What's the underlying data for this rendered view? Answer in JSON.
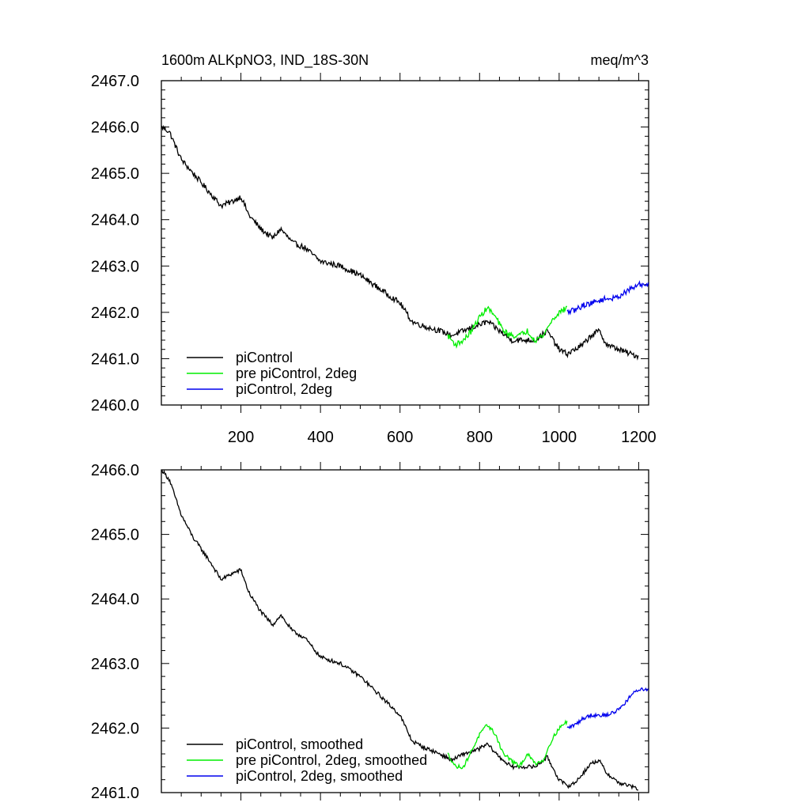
{
  "figure": {
    "title_left": "1600m ALKpNO3, IND_18S-30N",
    "title_right": "meq/m^3"
  },
  "colors": {
    "piControl": "#000000",
    "pre_piControl_2deg": "#00ee00",
    "piControl_2deg": "#0000ee"
  },
  "chart_data": [
    {
      "type": "line",
      "title": "1600m ALKpNO3, IND_18S-30N",
      "units": "meq/m^3",
      "xlim": [
        0,
        1225
      ],
      "ylim": [
        2460.0,
        2467.0
      ],
      "xticks": [
        200,
        400,
        600,
        800,
        1000,
        1200
      ],
      "xtick_labels": [
        "200",
        "400",
        "600",
        "800",
        "1000",
        "1200"
      ],
      "yticks": [
        2460.0,
        2461.0,
        2462.0,
        2463.0,
        2464.0,
        2465.0,
        2466.0,
        2467.0
      ],
      "ytick_labels": [
        "2460.0",
        "2461.0",
        "2462.0",
        "2463.0",
        "2464.0",
        "2465.0",
        "2466.0",
        "2467.0"
      ],
      "legend": {
        "position": "bottom-left",
        "entries": [
          "piControl",
          "pre piControl, 2deg",
          "piControl, 2deg"
        ]
      },
      "noise": 0.06,
      "series": [
        {
          "name": "piControl",
          "color": "#000000",
          "x": [
            1,
            20,
            50,
            80,
            120,
            150,
            180,
            200,
            220,
            250,
            280,
            300,
            330,
            360,
            400,
            450,
            500,
            550,
            600,
            630,
            660,
            700,
            730,
            760,
            790,
            820,
            850,
            880,
            910,
            940,
            970,
            1000,
            1020,
            1040,
            1060,
            1080,
            1100,
            1120,
            1150,
            1180,
            1200
          ],
          "y": [
            2466.0,
            2465.9,
            2465.3,
            2465.0,
            2464.6,
            2464.3,
            2464.4,
            2464.5,
            2464.1,
            2463.8,
            2463.6,
            2463.8,
            2463.5,
            2463.4,
            2463.1,
            2463.0,
            2462.8,
            2462.5,
            2462.2,
            2461.8,
            2461.7,
            2461.6,
            2461.5,
            2461.6,
            2461.7,
            2461.8,
            2461.6,
            2461.4,
            2461.4,
            2461.4,
            2461.6,
            2461.2,
            2461.1,
            2461.2,
            2461.3,
            2461.5,
            2461.6,
            2461.3,
            2461.2,
            2461.1,
            2461.05
          ]
        },
        {
          "name": "pre piControl, 2deg",
          "color": "#00ee00",
          "x": [
            720,
            740,
            760,
            780,
            800,
            820,
            840,
            860,
            880,
            900,
            920,
            940,
            960,
            980,
            1000,
            1020
          ],
          "y": [
            2461.5,
            2461.3,
            2461.4,
            2461.6,
            2461.9,
            2462.1,
            2461.9,
            2461.6,
            2461.5,
            2461.5,
            2461.6,
            2461.4,
            2461.5,
            2461.8,
            2462.0,
            2462.1
          ]
        },
        {
          "name": "piControl, 2deg",
          "color": "#0000ee",
          "x": [
            1020,
            1040,
            1060,
            1080,
            1100,
            1120,
            1140,
            1160,
            1180,
            1200,
            1225
          ],
          "y": [
            2462.0,
            2462.05,
            2462.15,
            2462.2,
            2462.25,
            2462.3,
            2462.3,
            2462.4,
            2462.5,
            2462.6,
            2462.6
          ]
        }
      ]
    },
    {
      "type": "line",
      "title": "",
      "xlim": [
        0,
        1225
      ],
      "ylim": [
        2461.0,
        2466.0
      ],
      "xticks": [
        200,
        400,
        600,
        800,
        1000,
        1200
      ],
      "xtick_labels": [],
      "yticks": [
        2461.0,
        2462.0,
        2463.0,
        2464.0,
        2465.0,
        2466.0
      ],
      "ytick_labels": [
        "2461.0",
        "2462.0",
        "2463.0",
        "2464.0",
        "2465.0",
        "2466.0"
      ],
      "legend": {
        "position": "bottom-left",
        "entries": [
          "piControl, smoothed",
          "pre piControl, 2deg, smoothed",
          "piControl, 2deg, smoothed"
        ]
      },
      "noise": 0.03,
      "series": [
        {
          "name": "piControl, smoothed",
          "color": "#000000",
          "x": [
            1,
            20,
            50,
            80,
            120,
            150,
            180,
            200,
            220,
            250,
            280,
            300,
            330,
            360,
            400,
            450,
            500,
            550,
            600,
            630,
            660,
            700,
            730,
            760,
            790,
            820,
            850,
            880,
            910,
            940,
            970,
            1000,
            1020,
            1040,
            1060,
            1080,
            1100,
            1120,
            1150,
            1180,
            1200
          ],
          "y": [
            2466.0,
            2465.85,
            2465.3,
            2464.95,
            2464.6,
            2464.3,
            2464.4,
            2464.45,
            2464.1,
            2463.8,
            2463.6,
            2463.75,
            2463.5,
            2463.4,
            2463.1,
            2463.0,
            2462.8,
            2462.5,
            2462.2,
            2461.8,
            2461.7,
            2461.6,
            2461.5,
            2461.6,
            2461.65,
            2461.75,
            2461.55,
            2461.4,
            2461.4,
            2461.4,
            2461.55,
            2461.2,
            2461.1,
            2461.15,
            2461.3,
            2461.45,
            2461.5,
            2461.3,
            2461.15,
            2461.1,
            2461.05
          ]
        },
        {
          "name": "pre piControl, 2deg, smoothed",
          "color": "#00ee00",
          "x": [
            720,
            740,
            760,
            780,
            800,
            820,
            840,
            860,
            880,
            900,
            920,
            940,
            960,
            980,
            1000,
            1020
          ],
          "y": [
            2461.6,
            2461.4,
            2461.4,
            2461.65,
            2461.9,
            2462.05,
            2461.9,
            2461.6,
            2461.5,
            2461.4,
            2461.6,
            2461.45,
            2461.5,
            2461.8,
            2462.0,
            2462.1
          ]
        },
        {
          "name": "piControl, 2deg, smoothed",
          "color": "#0000ee",
          "x": [
            1020,
            1040,
            1060,
            1080,
            1100,
            1120,
            1140,
            1160,
            1180,
            1200,
            1225
          ],
          "y": [
            2462.0,
            2462.05,
            2462.15,
            2462.2,
            2462.2,
            2462.2,
            2462.25,
            2462.35,
            2462.5,
            2462.6,
            2462.6
          ]
        }
      ]
    }
  ]
}
